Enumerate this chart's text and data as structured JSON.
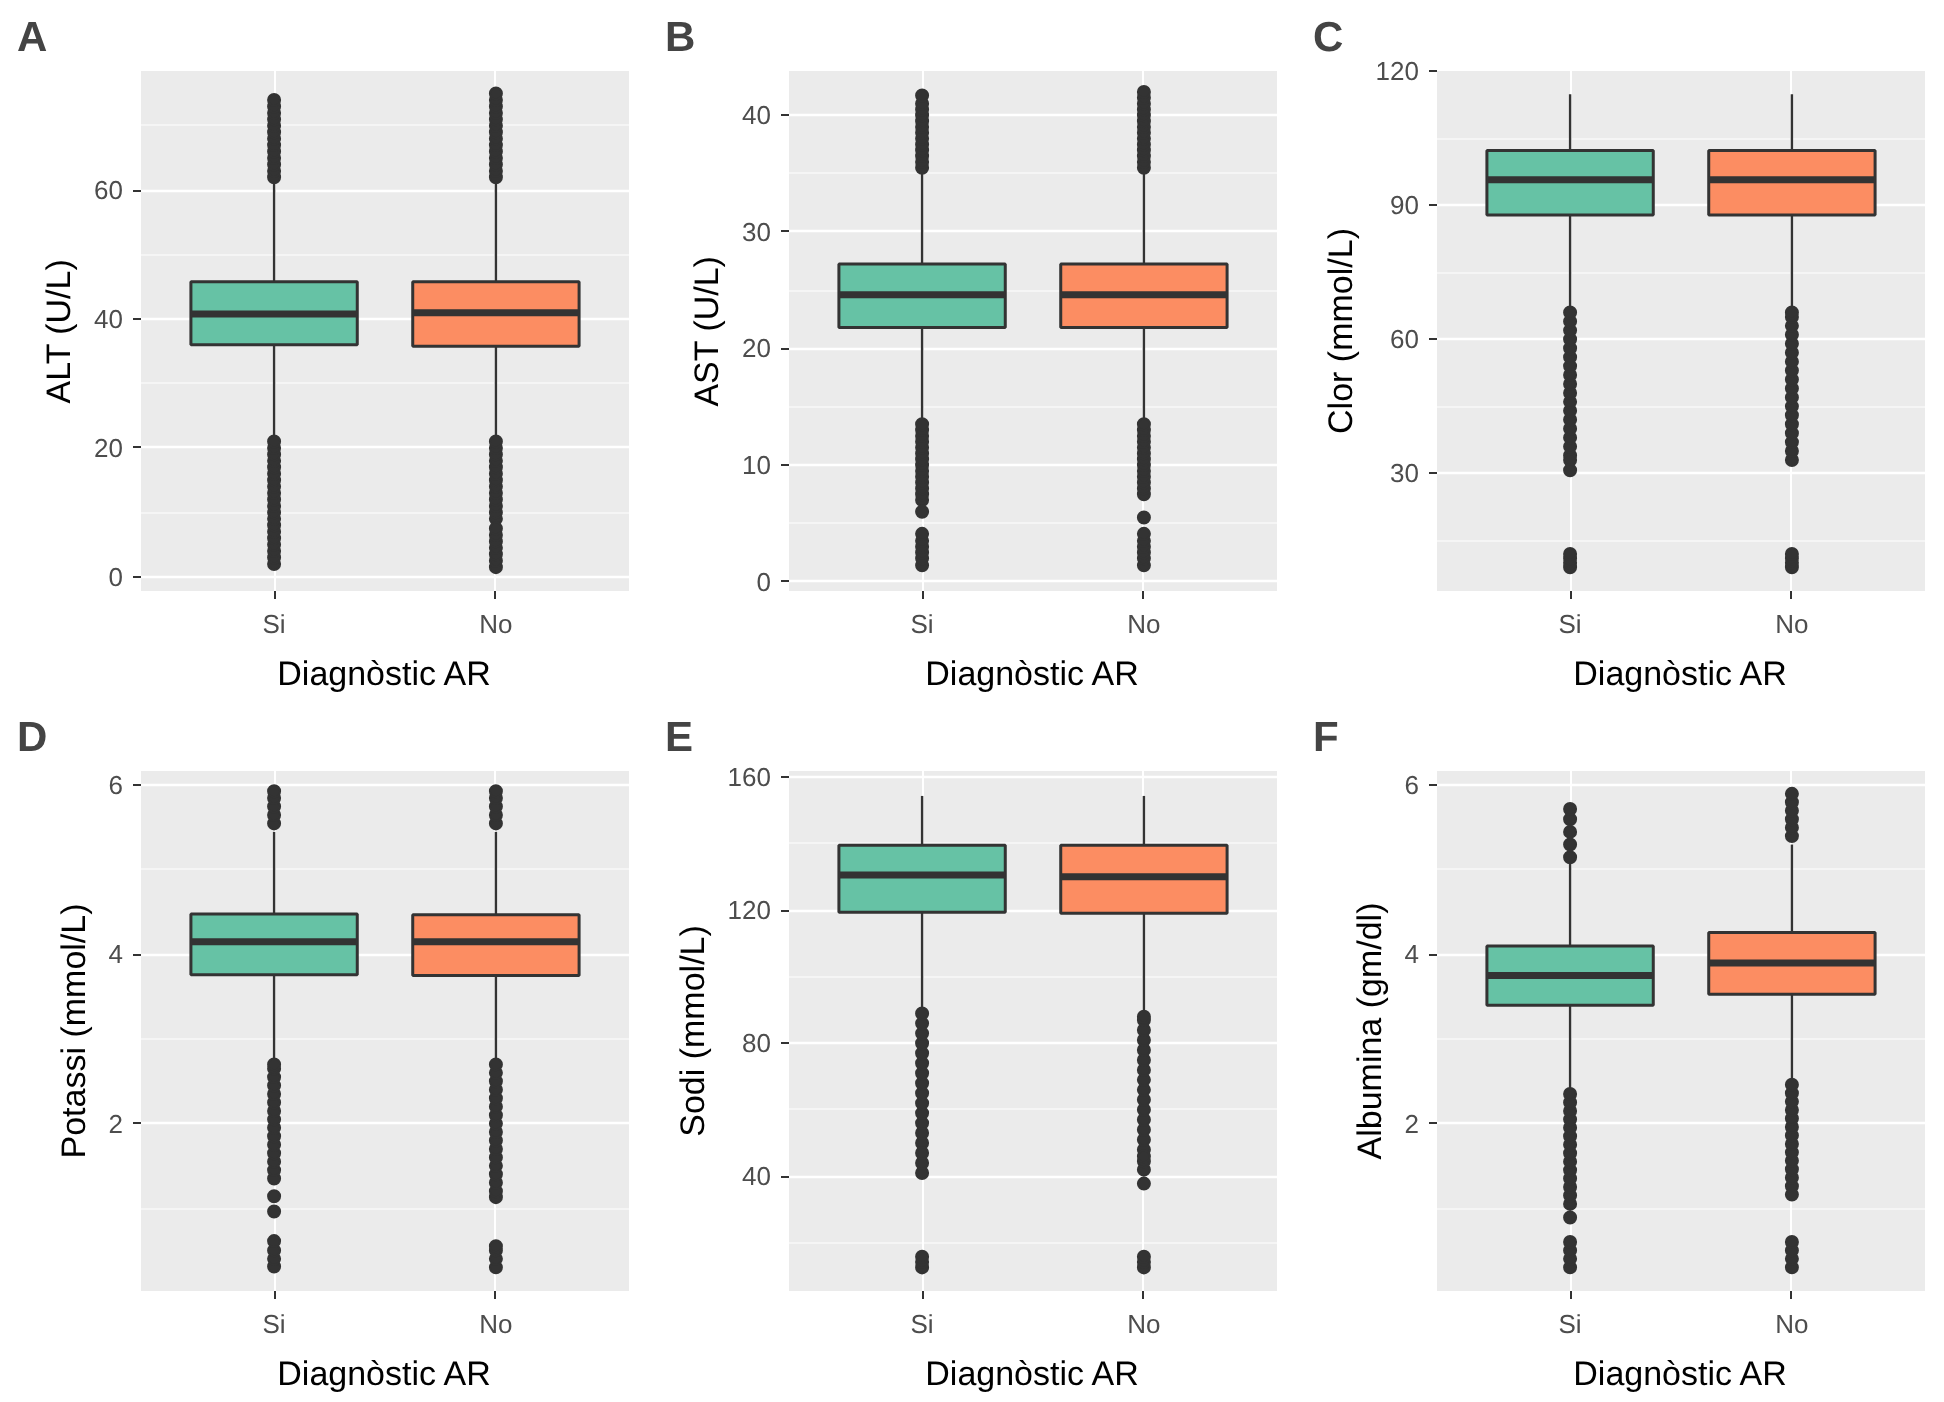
{
  "chart_data": [
    {
      "type": "box",
      "title": "A",
      "xlabel": "Diagnòstic AR",
      "ylabel": "ALT (U/L)",
      "categories": [
        "Si",
        "No"
      ],
      "colors": [
        "#66c2a5",
        "#fc8d62"
      ],
      "ylim": [
        -2.2,
        78.5
      ],
      "yticks": [
        0,
        20,
        40,
        60
      ],
      "grid": true,
      "boxes": [
        {
          "low": 21.1,
          "q1": 36.0,
          "median": 40.8,
          "q3": 45.8,
          "high": 61,
          "outliers": [
            62,
            63,
            64,
            65,
            66,
            67,
            68,
            69,
            70,
            71,
            72,
            73,
            74,
            2,
            3,
            4,
            5,
            6,
            7,
            8,
            9,
            10,
            11,
            12,
            13,
            14,
            15,
            16,
            17,
            18,
            19,
            20,
            21
          ]
        },
        {
          "low": 21.1,
          "q1": 35.8,
          "median": 41.0,
          "q3": 45.8,
          "high": 61,
          "outliers": [
            62,
            63,
            64,
            65,
            66,
            67,
            68,
            69,
            70,
            71,
            72,
            73,
            74,
            75,
            9,
            10,
            11,
            12,
            13,
            14,
            15,
            16,
            17,
            18,
            19,
            20,
            21,
            1.5,
            2.5,
            3.5,
            4.5,
            5.5,
            6.5,
            7.5
          ]
        }
      ]
    },
    {
      "type": "box",
      "title": "B",
      "xlabel": "Diagnòstic AR",
      "ylabel": "AST (U/L)",
      "categories": [
        "Si",
        "No"
      ],
      "colors": [
        "#66c2a5",
        "#fc8d62"
      ],
      "ylim": [
        -0.8,
        43.8
      ],
      "yticks": [
        0,
        10,
        20,
        30,
        40
      ],
      "grid": true,
      "boxes": [
        {
          "low": 13.7,
          "q1": 21.8,
          "median": 24.6,
          "q3": 27.25,
          "high": 35.2,
          "outliers": [
            35.5,
            36,
            36.5,
            37,
            37.5,
            38,
            38.5,
            39,
            39.5,
            40,
            40.5,
            41,
            41.7,
            7,
            7.5,
            8,
            8.5,
            9,
            9.5,
            10,
            10.5,
            11,
            11.5,
            12,
            12.5,
            13,
            13.5,
            6,
            1.4,
            2,
            2.5,
            3,
            3.5,
            4.1
          ]
        },
        {
          "low": 13.7,
          "q1": 21.8,
          "median": 24.6,
          "q3": 27.25,
          "high": 35.2,
          "outliers": [
            35.5,
            36,
            36.5,
            37,
            37.5,
            38,
            38.5,
            39,
            39.5,
            40,
            40.5,
            41,
            41.5,
            42,
            7.5,
            8,
            8.5,
            9,
            9.5,
            10,
            10.5,
            11,
            11.5,
            12,
            12.5,
            13,
            13.5,
            5.5,
            1.4,
            2,
            2.5,
            3,
            3.5,
            4.1
          ]
        }
      ]
    },
    {
      "type": "box",
      "title": "C",
      "xlabel": "Diagnòstic AR",
      "ylabel": "Clor (mmol/L)",
      "categories": [
        "Si",
        "No"
      ],
      "colors": [
        "#66c2a5",
        "#fc8d62"
      ],
      "ylim": [
        3.7,
        120
      ],
      "yticks": [
        30,
        60,
        90,
        120
      ],
      "grid": true,
      "boxes": [
        {
          "low": 66.5,
          "q1": 87.8,
          "median": 95.7,
          "q3": 102.2,
          "high": 114.8,
          "outliers": [
            34,
            36,
            38,
            40,
            42,
            44,
            46,
            48,
            50,
            52,
            54,
            56,
            58,
            60,
            62,
            64,
            66,
            33,
            30.7,
            9,
            10,
            11,
            12
          ]
        },
        {
          "low": 66.5,
          "q1": 87.8,
          "median": 95.7,
          "q3": 102.2,
          "high": 114.8,
          "outliers": [
            33,
            35,
            37,
            39,
            41,
            43,
            45,
            47,
            49,
            51,
            53,
            55,
            57,
            59,
            61,
            63,
            65,
            66,
            9,
            10,
            11,
            12
          ]
        }
      ]
    },
    {
      "type": "box",
      "title": "D",
      "xlabel": "Diagnòstic AR",
      "ylabel": "Potassi (mmol/L)",
      "categories": [
        "Si",
        "No"
      ],
      "colors": [
        "#66c2a5",
        "#fc8d62"
      ],
      "ylim": [
        0.02,
        6.17
      ],
      "yticks": [
        2,
        4,
        6
      ],
      "grid": true,
      "boxes": [
        {
          "low": 2.73,
          "q1": 3.76,
          "median": 4.15,
          "q3": 4.48,
          "high": 5.45,
          "outliers": [
            5.55,
            5.65,
            5.75,
            5.85,
            5.93,
            1.35,
            1.45,
            1.55,
            1.65,
            1.75,
            1.85,
            1.95,
            2.05,
            2.15,
            2.25,
            2.35,
            2.45,
            2.55,
            2.65,
            2.7,
            1.14,
            0.96,
            0.31,
            0.4,
            0.5,
            0.61
          ]
        },
        {
          "low": 2.73,
          "q1": 3.75,
          "median": 4.15,
          "q3": 4.47,
          "high": 5.45,
          "outliers": [
            5.55,
            5.65,
            5.75,
            5.85,
            5.93,
            1.13,
            1.2,
            1.3,
            1.4,
            1.5,
            1.6,
            1.7,
            1.8,
            1.9,
            2.0,
            2.1,
            2.2,
            2.3,
            2.4,
            2.5,
            2.6,
            2.7,
            0.3,
            0.4,
            0.5,
            0.55
          ]
        }
      ]
    },
    {
      "type": "box",
      "title": "E",
      "xlabel": "Diagnòstic AR",
      "ylabel": "Sodi (mmol/L)",
      "categories": [
        "Si",
        "No"
      ],
      "colors": [
        "#66c2a5",
        "#fc8d62"
      ],
      "ylim": [
        5.5,
        161.9
      ],
      "yticks": [
        40,
        80,
        120,
        160
      ],
      "grid": true,
      "boxes": [
        {
          "low": 89.6,
          "q1": 119.4,
          "median": 130.6,
          "q3": 139.6,
          "high": 154.4,
          "outliers": [
            50,
            53,
            56,
            59,
            62,
            65,
            68,
            71,
            74,
            77,
            80,
            83,
            86,
            89,
            41,
            44,
            47,
            12.6,
            14.2,
            15.8
          ]
        },
        {
          "low": 89.6,
          "q1": 119.1,
          "median": 130.1,
          "q3": 139.6,
          "high": 154.4,
          "outliers": [
            48,
            51,
            54,
            57,
            60,
            63,
            66,
            69,
            72,
            75,
            78,
            81,
            84,
            87,
            88,
            42,
            44.5,
            46,
            37.8,
            12.6,
            14.2,
            15.8
          ]
        }
      ]
    },
    {
      "type": "box",
      "title": "F",
      "xlabel": "Diagnòstic AR",
      "ylabel": "Albumina (gm/dl)",
      "categories": [
        "Si",
        "No"
      ],
      "colors": [
        "#66c2a5",
        "#fc8d62"
      ],
      "ylim": [
        0.02,
        6.17
      ],
      "yticks": [
        2,
        4,
        6
      ],
      "grid": true,
      "boxes": [
        {
          "low": 2.37,
          "q1": 3.4,
          "median": 3.75,
          "q3": 4.1,
          "high": 5.09,
          "outliers": [
            5.15,
            5.3,
            5.45,
            5.6,
            5.72,
            1.05,
            1.15,
            1.25,
            1.35,
            1.45,
            1.55,
            1.65,
            1.75,
            1.85,
            1.95,
            2.05,
            2.15,
            2.25,
            2.35,
            0.89,
            0.3,
            0.4,
            0.5,
            0.6
          ]
        },
        {
          "low": 2.48,
          "q1": 3.53,
          "median": 3.9,
          "q3": 4.26,
          "high": 5.3,
          "outliers": [
            5.4,
            5.5,
            5.6,
            5.7,
            5.8,
            5.9,
            1.16,
            1.26,
            1.36,
            1.46,
            1.56,
            1.66,
            1.76,
            1.86,
            1.96,
            2.06,
            2.16,
            2.26,
            2.36,
            2.46,
            0.3,
            0.4,
            0.5,
            0.6
          ]
        }
      ]
    }
  ]
}
